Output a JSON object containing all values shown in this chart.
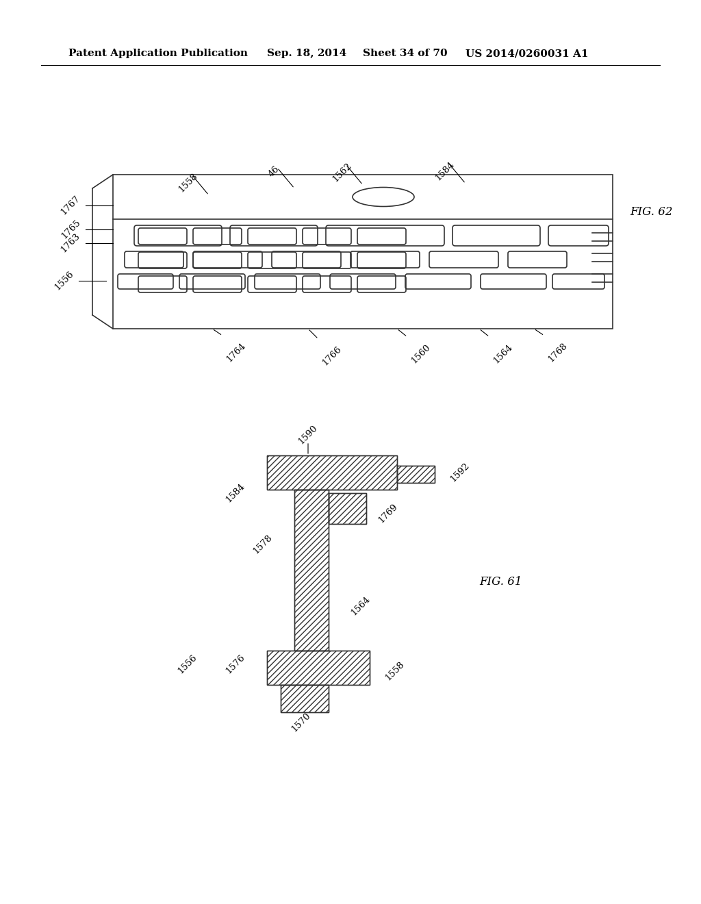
{
  "bg_color": "#ffffff",
  "header_text": "Patent Application Publication",
  "header_date": "Sep. 18, 2014",
  "header_sheet": "Sheet 34 of 70",
  "header_patent": "US 2014/0260031 A1",
  "fig62_label": "FIG. 62",
  "fig61_label": "FIG. 61"
}
